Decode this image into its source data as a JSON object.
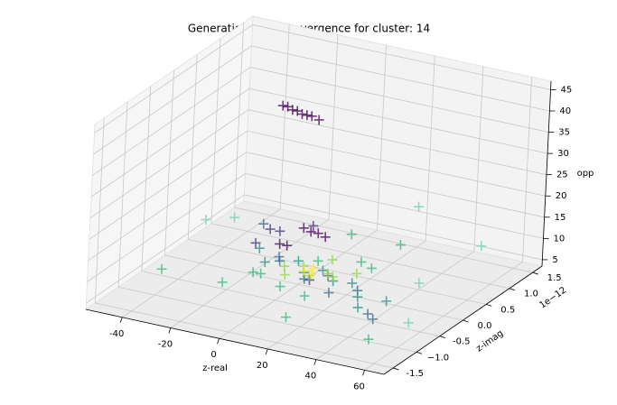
{
  "chart_data": {
    "type": "scatter3d",
    "title": "Generation wise Convergence for cluster: 14",
    "x_label": "z-real",
    "y_label": "z-imag",
    "z_label": "opp",
    "y_offset_label": "1e−12",
    "xlim": [
      -55,
      68
    ],
    "ylim": [
      -1.7,
      1.7
    ],
    "zlim": [
      3.5,
      47
    ],
    "xticks": [
      -40,
      -20,
      0,
      20,
      40,
      60
    ],
    "yticks": [
      -1.5,
      {
        "value": -1.0,
        "label": "−1.0"
      },
      -0.5,
      {
        "value": 0.0,
        "label": "0.0"
      },
      0.5,
      {
        "value": 1.0,
        "label": "1.0"
      },
      1.5
    ],
    "zticks": [
      5,
      10,
      15,
      20,
      25,
      30,
      35,
      40,
      45
    ],
    "grid": true,
    "series": [
      {
        "color": "#440154",
        "x": [
          -16,
          -14,
          -12,
          -10,
          -8,
          -6,
          -4,
          -1,
          -8,
          -5,
          -2,
          1,
          -12,
          -9
        ],
        "y": [
          0.34,
          0.34,
          0.34,
          0.34,
          0.34,
          0.34,
          0.34,
          0.34,
          0.5,
          0.5,
          0.5,
          0.5,
          0.2,
          0.2
        ],
        "z": [
          41,
          41,
          40.5,
          40.5,
          40,
          40,
          40,
          39.5,
          12,
          11.5,
          11.5,
          11,
          10,
          10
        ]
      },
      {
        "color": "#46327e",
        "x": [
          -18,
          -14,
          -20,
          -6,
          10
        ],
        "y": [
          0.3,
          0.3,
          0.1,
          0.6,
          -0.3
        ],
        "z": [
          12,
          12,
          10,
          12,
          8
        ]
      },
      {
        "color": "#31688e",
        "x": [
          -30,
          -12,
          6,
          20,
          28,
          40,
          44,
          -8,
          12
        ],
        "y": [
          0.8,
          0.2,
          -0.2,
          -0.4,
          -0.2,
          -0.6,
          -0.7,
          0.0,
          0.0
        ],
        "z": [
          8,
          7,
          7,
          7,
          7,
          6,
          6,
          8,
          7
        ]
      },
      {
        "color": "#21918c",
        "x": [
          -14,
          -4,
          2,
          8,
          16,
          22,
          30,
          -22,
          34,
          40
        ],
        "y": [
          0.0,
          0.2,
          0.0,
          0.1,
          -0.1,
          0.0,
          -0.3,
          0.3,
          -0.5,
          -0.2
        ],
        "z": [
          7,
          7,
          6.5,
          7,
          7,
          6.5,
          6.5,
          7,
          6,
          6
        ]
      },
      {
        "color": "#35b779",
        "x": [
          -45,
          -20,
          -10,
          0,
          4,
          12,
          18,
          26,
          8,
          -15,
          30,
          14,
          50
        ],
        "y": [
          -0.6,
          -0.6,
          -0.3,
          -0.4,
          0.2,
          -0.5,
          0.4,
          0.2,
          0.7,
          -0.2,
          0.6,
          -1.0,
          -1.1
        ],
        "z": [
          6,
          6,
          7,
          6,
          8,
          6,
          8,
          9,
          11,
          6,
          12,
          5,
          5
        ]
      },
      {
        "color": "#90d743",
        "x": [
          -6,
          0,
          6,
          10,
          14,
          20,
          -2,
          8
        ],
        "y": [
          0.0,
          0.1,
          -0.1,
          0.1,
          0.0,
          0.2,
          -0.2,
          0.3
        ],
        "z": [
          7,
          7,
          7,
          6.5,
          7,
          7,
          7,
          8
        ]
      },
      {
        "color": "#fde725",
        "x": [
          2,
          4,
          6
        ],
        "y": [
          0.0,
          0.1,
          -0.05
        ],
        "z": [
          7,
          7,
          7
        ]
      },
      {
        "color": "#73d0a7",
        "x": [
          -50,
          -42,
          42,
          52,
          22,
          55
        ],
        "y": [
          0.6,
          0.8,
          0.4,
          1.2,
          1.4,
          -0.5
        ],
        "z": [
          8,
          8,
          6,
          10,
          14,
          5
        ]
      }
    ]
  }
}
